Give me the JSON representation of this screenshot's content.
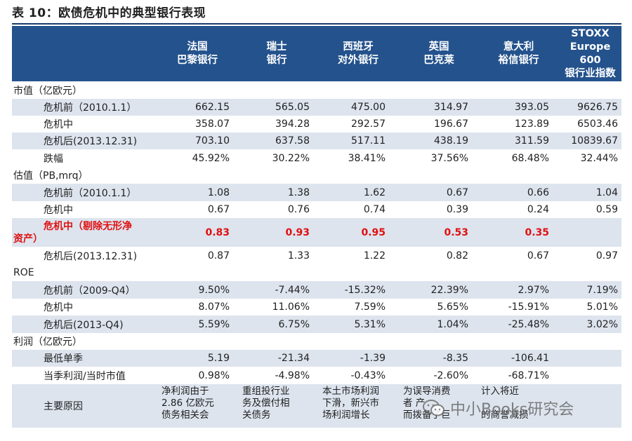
{
  "title": "表 10：欧债危机中的典型银行表现",
  "columns": [
    "法国\n巴黎银行",
    "瑞士\n银行",
    "西班牙\n对外银行",
    "英国\n巴克莱",
    "意大利\n裕信银行",
    "STOXX\nEurope\n600\n银行业指数"
  ],
  "sections": {
    "market_value": "市值（亿欧元）",
    "valuation": "估值（PB,mrq）",
    "roe": "ROE",
    "profit": "利润（亿欧元）"
  },
  "rows": [
    {
      "label": "危机前（2010.1.1）",
      "values": [
        "662.15",
        "565.05",
        "475.00",
        "314.97",
        "393.05",
        "9626.75"
      ]
    },
    {
      "label": "危机中",
      "values": [
        "358.07",
        "394.28",
        "292.57",
        "196.67",
        "123.89",
        "6503.46"
      ]
    },
    {
      "label": "危机后(2013.12.31)",
      "values": [
        "703.10",
        "637.58",
        "517.11",
        "438.19",
        "311.59",
        "10839.67"
      ]
    },
    {
      "label": "跌幅",
      "values": [
        "45.92%",
        "30.22%",
        "38.41%",
        "37.56%",
        "68.48%",
        "32.44%"
      ]
    },
    {
      "label": "危机前（2010.1.1）",
      "values": [
        "1.08",
        "1.38",
        "1.62",
        "0.67",
        "0.66",
        "1.04"
      ]
    },
    {
      "label": "危机中",
      "values": [
        "0.67",
        "0.76",
        "0.74",
        "0.39",
        "0.24",
        "0.59"
      ]
    },
    {
      "label_line1": "危机中（剔除无形净",
      "label_line2": "资产）",
      "values": [
        "0.83",
        "0.93",
        "0.95",
        "0.53",
        "0.35",
        ""
      ]
    },
    {
      "label": "危机后(2013.12.31)",
      "values": [
        "0.87",
        "1.33",
        "1.22",
        "0.82",
        "0.67",
        "0.97"
      ]
    },
    {
      "label": "危机前（2009-Q4）",
      "values": [
        "9.50%",
        "-7.44%",
        "-15.32%",
        "22.39%",
        "2.97%",
        "7.19%"
      ]
    },
    {
      "label": "危机中",
      "values": [
        "8.07%",
        "11.06%",
        "7.59%",
        "5.65%",
        "-15.91%",
        "5.01%"
      ]
    },
    {
      "label": "危机后(2013-Q4)",
      "values": [
        "5.59%",
        "6.75%",
        "5.31%",
        "1.04%",
        "-25.48%",
        "3.02%"
      ]
    },
    {
      "label": "最低单季",
      "values": [
        "5.19",
        "-21.34",
        "-1.39",
        "-8.35",
        "-106.41",
        ""
      ]
    },
    {
      "label": "当季利润/当时市值",
      "values": [
        "0.98%",
        "-4.98%",
        "-0.43%",
        "-2.60%",
        "-68.71%",
        ""
      ]
    }
  ],
  "reasons": {
    "label": "主要原因",
    "values": [
      "净利润由于\n2.86 亿欧元\n债务相关会",
      "重组投行业\n务及偿付相\n关债务",
      "本土市场利润\n下滑，新兴市\n场利润增长",
      "为误导消费\n者  产\n而拨备了巨",
      "计入将近\n\n的商誉减损",
      ""
    ]
  },
  "watermark": "中小Books研究会"
}
